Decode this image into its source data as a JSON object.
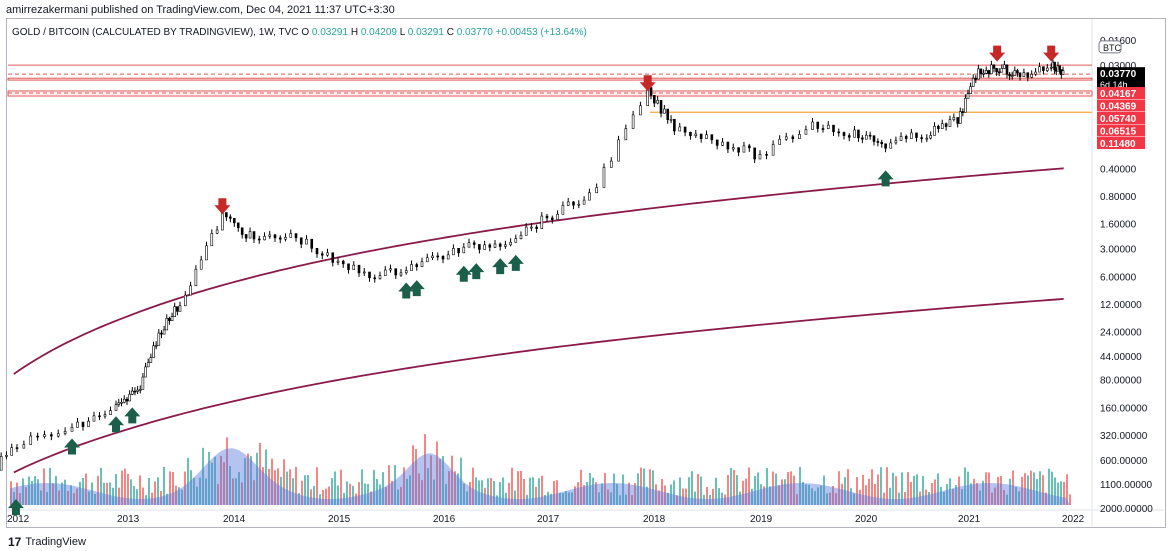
{
  "header": {
    "published_line": "amirrezakermani published on TradingView.com, Dec 04, 2021 11:37 UTC+3:30"
  },
  "legend": {
    "symbol": "GOLD / BITCOIN (CALCULATED BY TRADINGVIEW), 1W, TVC",
    "o_label": "O",
    "o_val": "0.03291",
    "h_label": "H",
    "h_val": "0.04209",
    "l_label": "L",
    "l_val": "0.03291",
    "c_label": "C",
    "c_val": "0.03770",
    "change": "+0.00453 (+13.64%)"
  },
  "footer": {
    "brand": "TradingView",
    "logo": "17"
  },
  "chart_data": {
    "type": "candlestick",
    "currency_badge": "BTC",
    "y_scale": "log-inverted",
    "y_ticks": [
      "0.01600",
      "0.03000",
      "0.40000",
      "0.80000",
      "1.60000",
      "3.00000",
      "6.00000",
      "12.00000",
      "24.00000",
      "44.00000",
      "80.00000",
      "160.00000",
      "320.00000",
      "600.00000",
      "1100.00000",
      "2000.00000"
    ],
    "x_ticks": [
      "2012",
      "2013",
      "2014",
      "2015",
      "2016",
      "2017",
      "2018",
      "2019",
      "2020",
      "2021",
      "2022"
    ],
    "price_tags": [
      {
        "label": "0.03770",
        "sub": "6d 14h",
        "color": "#000000"
      },
      {
        "label": "0.04167",
        "color": "#f23645"
      },
      {
        "label": "0.04369",
        "color": "#f23645"
      },
      {
        "label": "0.05740",
        "color": "#f23645"
      },
      {
        "label": "0.06515",
        "color": "#f23645"
      },
      {
        "label": "0.11480",
        "color": "#f23645"
      }
    ],
    "series": [
      {
        "x": [
          2011.6,
          2012.0,
          2012.5,
          2012.9,
          2013.1,
          2013.3,
          2013.5,
          2013.9,
          2014.2,
          2014.6,
          2015.0,
          2015.4,
          2015.8,
          2016.2,
          2016.6,
          2017.0,
          2017.4,
          2017.95,
          2018.2,
          2018.6,
          2019.0,
          2019.5,
          2019.9,
          2020.2,
          2020.6,
          2020.9,
          2021.1,
          2021.3,
          2021.5,
          2021.8,
          2021.93
        ],
        "y": [
          1300,
          400,
          280,
          160,
          110,
          25,
          12,
          1.3,
          2.4,
          2.2,
          4.5,
          6.0,
          4.2,
          3.0,
          2.5,
          1.4,
          0.8,
          0.06,
          0.14,
          0.2,
          0.3,
          0.13,
          0.17,
          0.22,
          0.17,
          0.12,
          0.035,
          0.032,
          0.04,
          0.03,
          0.0377
        ]
      }
    ],
    "resistance_levels": [
      0.03,
      0.0377,
      0.0417,
      0.0437,
      0.0574,
      0.0652
    ],
    "support_level": 0.165,
    "colors": {
      "up": "#26a69a",
      "down": "#ef5350",
      "channel": "#8b1a4a",
      "level": "#e05a5a",
      "orange": "#f5a742",
      "arrow_down": "#c62828",
      "arrow_up": "#1b5e4a",
      "volume_area": "#5b7be0"
    }
  }
}
